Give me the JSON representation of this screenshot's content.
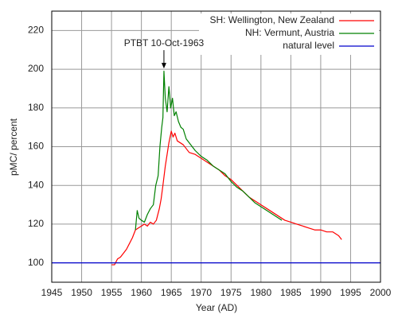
{
  "chart_data": {
    "type": "line",
    "xlabel": "Year (AD)",
    "ylabel": "pMC/ percent",
    "xlim": [
      1945,
      2000
    ],
    "ylim": [
      90,
      230
    ],
    "xticks": [
      1945,
      1950,
      1955,
      1960,
      1965,
      1970,
      1975,
      1980,
      1985,
      1990,
      1995,
      2000
    ],
    "yticks": [
      100,
      120,
      140,
      160,
      180,
      200,
      220
    ],
    "grid": true,
    "legend": "upper right",
    "annotation": {
      "text": "PTBT 10-Oct-1963",
      "x": 1963.77,
      "y": 200
    },
    "series": [
      {
        "name": "SH: Wellington, New Zealand",
        "color": "#ff0000",
        "x": [
          1955,
          1955.5,
          1956,
          1956.5,
          1957,
          1957.5,
          1958,
          1958.5,
          1959,
          1959.5,
          1960,
          1960.5,
          1961,
          1961.5,
          1962,
          1962.5,
          1963,
          1963.3,
          1963.6,
          1964,
          1964.3,
          1964.6,
          1965,
          1965.3,
          1965.6,
          1966,
          1967,
          1968,
          1969,
          1970,
          1971,
          1972,
          1973,
          1974,
          1975,
          1976,
          1977,
          1978,
          1979,
          1980,
          1981,
          1982,
          1983,
          1984,
          1985,
          1986,
          1987,
          1988,
          1989,
          1990,
          1991,
          1992,
          1993,
          1993.5
        ],
        "values": [
          99,
          99,
          102,
          103,
          105,
          107,
          110,
          113,
          117,
          118,
          119,
          120,
          119,
          121,
          120,
          122,
          128,
          133,
          140,
          150,
          156,
          162,
          168,
          165,
          167,
          163,
          161,
          157,
          156,
          154,
          152,
          150,
          148,
          145,
          143,
          140,
          137,
          134,
          132,
          130,
          128,
          126,
          124,
          122,
          121,
          120,
          119,
          118,
          117,
          117,
          116,
          116,
          114,
          112
        ]
      },
      {
        "name": "NH: Vermunt, Austria",
        "color": "#008000",
        "x": [
          1959,
          1959.3,
          1959.6,
          1960,
          1960.5,
          1961,
          1961.5,
          1962,
          1962.4,
          1962.8,
          1963.1,
          1963.4,
          1963.6,
          1963.77,
          1964,
          1964.3,
          1964.6,
          1964.9,
          1965.2,
          1965.5,
          1965.8,
          1966.2,
          1966.6,
          1967,
          1967.5,
          1968,
          1969,
          1970,
          1971,
          1972,
          1973,
          1974,
          1975,
          1976,
          1977,
          1978,
          1979,
          1980,
          1981,
          1982,
          1983,
          1983.5
        ],
        "values": [
          117,
          127,
          123,
          122,
          121,
          125,
          128,
          130,
          140,
          145,
          160,
          170,
          175,
          199,
          185,
          178,
          191,
          180,
          185,
          176,
          178,
          173,
          170,
          169,
          164,
          162,
          158,
          155,
          153,
          150,
          148,
          146,
          142,
          139,
          137,
          134,
          131,
          129,
          127,
          125,
          123,
          122
        ]
      },
      {
        "name": "natural level",
        "color": "#0000cc",
        "x": [
          1945,
          2000
        ],
        "values": [
          100,
          100
        ]
      }
    ]
  }
}
